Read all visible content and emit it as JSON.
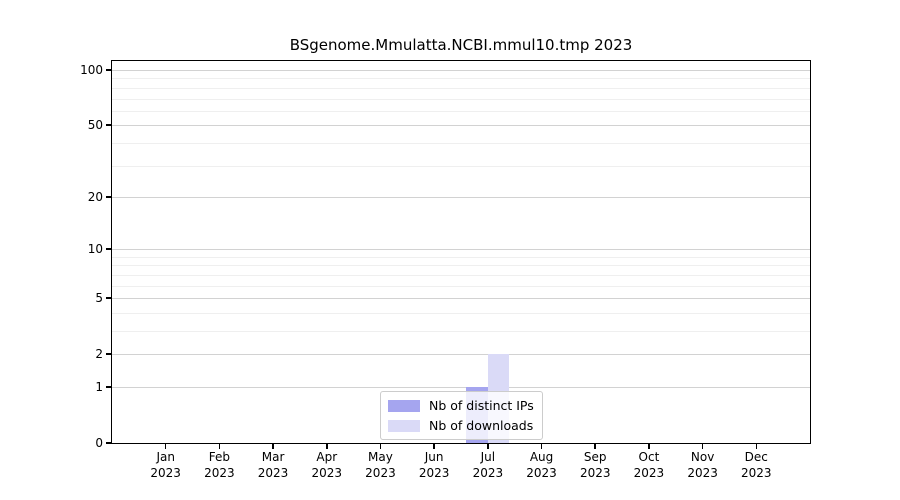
{
  "chart_data": {
    "type": "bar",
    "title": "BSgenome.Mmulatta.NCBI.mmul10.tmp 2023",
    "categories": [
      "Jan",
      "Feb",
      "Mar",
      "Apr",
      "May",
      "Jun",
      "Jul",
      "Aug",
      "Sep",
      "Oct",
      "Nov",
      "Dec"
    ],
    "category_year": "2023",
    "series": [
      {
        "name": "Nb of distinct IPs",
        "color": "#a5a5ef",
        "values": [
          0,
          0,
          0,
          0,
          0,
          0,
          1,
          0,
          0,
          0,
          0,
          0
        ]
      },
      {
        "name": "Nb of downloads",
        "color": "#dadaf7",
        "values": [
          0,
          0,
          0,
          0,
          0,
          0,
          2,
          0,
          0,
          0,
          0,
          0
        ]
      }
    ],
    "xlabel": "",
    "ylabel": "",
    "yscale": "log1p",
    "ylim": [
      0,
      112
    ],
    "yticks": [
      0,
      1,
      2,
      5,
      10,
      20,
      50,
      100
    ],
    "yticks_minor": [
      3,
      4,
      6,
      7,
      8,
      9,
      30,
      40,
      60,
      70,
      80,
      90
    ],
    "grid": "horizontal-major-and-minor",
    "legend_position": "lower center",
    "legend_labels": [
      "Nb of distinct IPs",
      "Nb of downloads"
    ]
  }
}
